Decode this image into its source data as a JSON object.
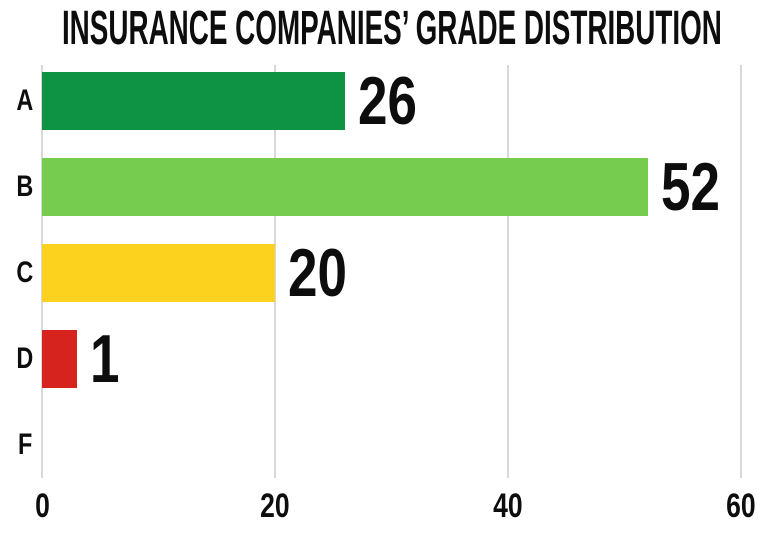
{
  "title": "INSURANCE COMPANIES’ GRADE DISTRIBUTION",
  "chart_data": {
    "type": "bar",
    "orientation": "horizontal",
    "title": "INSURANCE COMPANIES’ GRADE DISTRIBUTION",
    "categories": [
      "A",
      "B",
      "C",
      "D",
      "F"
    ],
    "values": [
      26,
      52,
      20,
      1,
      0
    ],
    "value_labels": [
      "26",
      "52",
      "20",
      "1",
      ""
    ],
    "bar_colors": [
      "#0e9345",
      "#75cc4f",
      "#fdd21f",
      "#d7231e",
      null
    ],
    "xlabel": "",
    "ylabel": "",
    "xlim": [
      0,
      60
    ],
    "x_ticks": [
      0,
      20,
      40,
      60
    ],
    "grid": "vertical-gridlines",
    "legend": "none",
    "background_color": "#ffffff",
    "text_color": "#0d0d0d",
    "gridline_color": "#d8d8d8",
    "min_visible_bar_units": 3
  }
}
